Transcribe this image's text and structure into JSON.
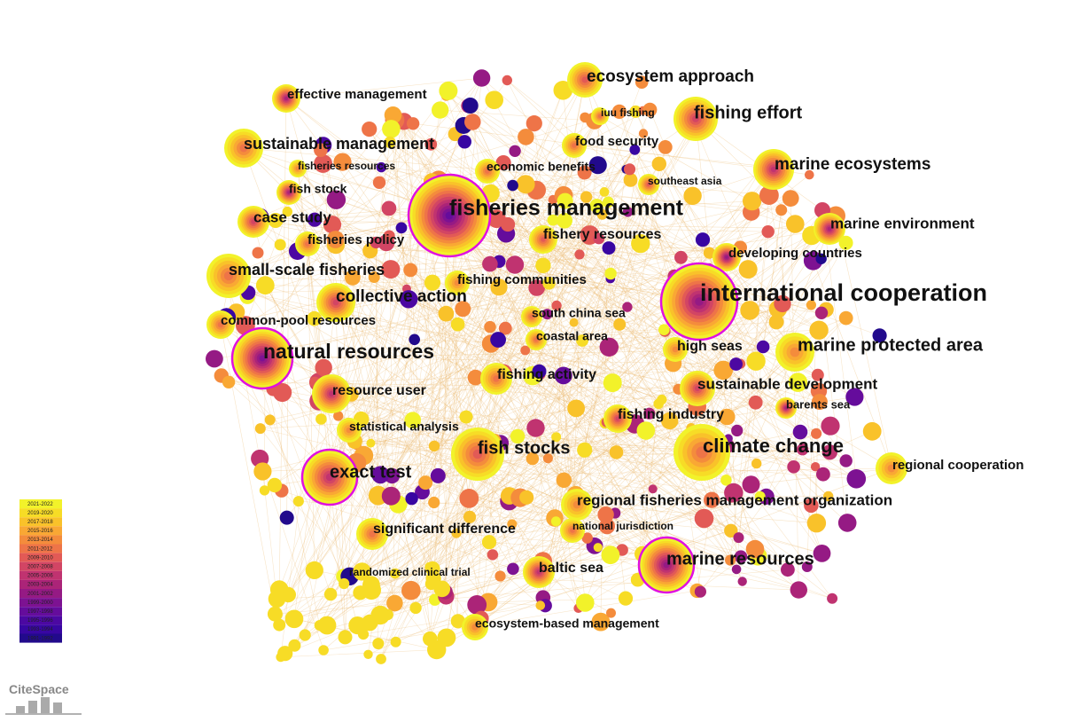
{
  "nodes": [
    {
      "label": "ecosystem approach"
    },
    {
      "label": "effective management"
    },
    {
      "label": "iuu fishing"
    },
    {
      "label": "fishing effort"
    },
    {
      "label": "sustainable management"
    },
    {
      "label": "food security"
    },
    {
      "label": "marine ecosystems"
    },
    {
      "label": "fisheries resources"
    },
    {
      "label": "economic benefits"
    },
    {
      "label": "southeast asia"
    },
    {
      "label": "fish stock"
    },
    {
      "label": "fisheries management"
    },
    {
      "label": "case study"
    },
    {
      "label": "marine environment"
    },
    {
      "label": "fishery resources"
    },
    {
      "label": "fisheries policy"
    },
    {
      "label": "developing countries"
    },
    {
      "label": "small-scale fisheries"
    },
    {
      "label": "fishing communities"
    },
    {
      "label": "international cooperation"
    },
    {
      "label": "collective action"
    },
    {
      "label": "south china sea"
    },
    {
      "label": "common-pool resources"
    },
    {
      "label": "coastal area"
    },
    {
      "label": "high seas"
    },
    {
      "label": "marine protected area"
    },
    {
      "label": "natural resources"
    },
    {
      "label": "fishing activity"
    },
    {
      "label": "resource user"
    },
    {
      "label": "sustainable development"
    },
    {
      "label": "barents sea"
    },
    {
      "label": "fishing industry"
    },
    {
      "label": "statistical analysis"
    },
    {
      "label": "fish stocks"
    },
    {
      "label": "climate change"
    },
    {
      "label": "regional cooperation"
    },
    {
      "label": "exact test"
    },
    {
      "label": "regional fisheries management organization"
    },
    {
      "label": "significant difference"
    },
    {
      "label": "national jurisdiction"
    },
    {
      "label": "baltic sea"
    },
    {
      "label": "marine resources"
    },
    {
      "label": "randomized clinical trial"
    },
    {
      "label": "ecosystem-based management"
    }
  ],
  "legend": {
    "items": [
      {
        "label": "2021-2022",
        "color": "#f2f22a"
      },
      {
        "label": "2019-2020",
        "color": "#f7dc26"
      },
      {
        "label": "2017-2018",
        "color": "#f9c22a"
      },
      {
        "label": "2015-2016",
        "color": "#f9a834"
      },
      {
        "label": "2013-2014",
        "color": "#f48c3c"
      },
      {
        "label": "2011-2012",
        "color": "#ee7448"
      },
      {
        "label": "2009-2010",
        "color": "#e25a56"
      },
      {
        "label": "2007-2008",
        "color": "#d24564"
      },
      {
        "label": "2005-2006",
        "color": "#c03370"
      },
      {
        "label": "2003-2004",
        "color": "#ab2478"
      },
      {
        "label": "2001-2002",
        "color": "#951a84"
      },
      {
        "label": "1999-2000",
        "color": "#7d1292"
      },
      {
        "label": "1997-1998",
        "color": "#650c9c"
      },
      {
        "label": "1995-1996",
        "color": "#4c08a2"
      },
      {
        "label": "1993-1994",
        "color": "#3806a2"
      },
      {
        "label": "1991-1992",
        "color": "#220a8c"
      }
    ]
  },
  "logo": "CiteSpace"
}
